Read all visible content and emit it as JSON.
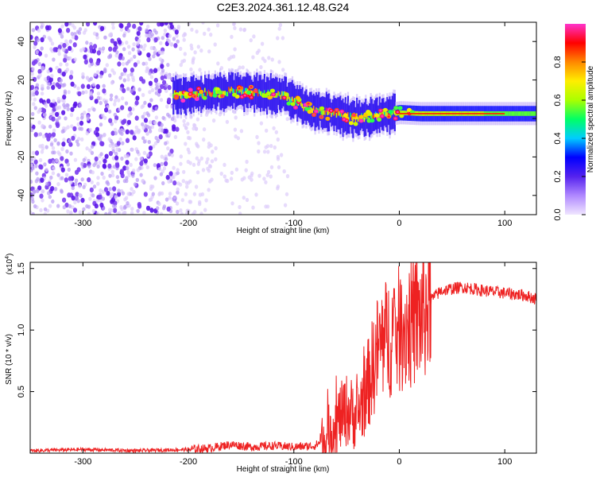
{
  "title": "C2E3.2024.361.12.48.G24",
  "chart_data": [
    {
      "type": "heatmap",
      "name": "spectrogram",
      "xlabel": "Height of straight line (km)",
      "ylabel": "Frequency (Hz)",
      "xlim": [
        -350,
        130
      ],
      "ylim": [
        -50,
        50
      ],
      "x_ticks": [
        "-300",
        "-200",
        "-100",
        "0",
        "100"
      ],
      "x_tick_values": [
        -300,
        -200,
        -100,
        0,
        100
      ],
      "y_ticks": [
        "40",
        "20",
        "0",
        "-20",
        "-40"
      ],
      "y_tick_values": [
        40,
        20,
        0,
        -20,
        -40
      ],
      "colorbar": {
        "label": "Normalized spectral amplitude",
        "range": [
          0,
          1
        ],
        "ticks": [
          "0.0",
          "0.2",
          "0.4",
          "0.6",
          "0.8"
        ],
        "tick_values": [
          0.0,
          0.2,
          0.4,
          0.6,
          0.8
        ],
        "colors": [
          "#f0e6ff",
          "#b088ff",
          "#5522ee",
          "#0000ff",
          "#00ccff",
          "#00ff66",
          "#aaff00",
          "#ffee00",
          "#ff8800",
          "#ff0000",
          "#ff33cc"
        ]
      },
      "ridge": {
        "x": [
          -210,
          -190,
          -170,
          -150,
          -130,
          -110,
          -100,
          -90,
          -80,
          -70,
          -60,
          -50,
          -40,
          -30,
          -20,
          -10,
          0,
          20,
          40,
          60,
          80,
          100,
          130
        ],
        "y": [
          12,
          13,
          14,
          14,
          13,
          12,
          9,
          6,
          4,
          3,
          2,
          1,
          0,
          0.5,
          1,
          2,
          3,
          2.5,
          2.5,
          2.5,
          2.5,
          2.5,
          2.5
        ]
      },
      "grid": false
    },
    {
      "type": "line",
      "name": "snr",
      "xlabel": "Height of straight line (km)",
      "ylabel": "SNR (10 * v/v)",
      "y_multiplier": "(x10",
      "y_multiplier_exp": "4",
      "y_multiplier_close": ")",
      "xlim": [
        -350,
        130
      ],
      "ylim": [
        0,
        1.55
      ],
      "x_ticks": [
        "-300",
        "-200",
        "-100",
        "0",
        "100"
      ],
      "x_tick_values": [
        -300,
        -200,
        -100,
        0,
        100
      ],
      "y_ticks": [
        "1.5",
        "1.0",
        "0.5"
      ],
      "y_tick_values": [
        1.5,
        1.0,
        0.5
      ],
      "color": "#ee2222",
      "x": [
        -350,
        -300,
        -250,
        -200,
        -180,
        -160,
        -140,
        -120,
        -100,
        -80,
        -70,
        -60,
        -50,
        -40,
        -30,
        -20,
        -10,
        0,
        10,
        20,
        30,
        40,
        60,
        80,
        100,
        120,
        130
      ],
      "y": [
        0.02,
        0.03,
        0.02,
        0.03,
        0.04,
        0.07,
        0.05,
        0.06,
        0.05,
        0.06,
        0.12,
        0.25,
        0.35,
        0.3,
        0.55,
        0.85,
        0.95,
        1.0,
        1.05,
        1.1,
        1.25,
        1.32,
        1.35,
        1.32,
        1.3,
        1.28,
        1.25
      ],
      "grid": false
    }
  ]
}
